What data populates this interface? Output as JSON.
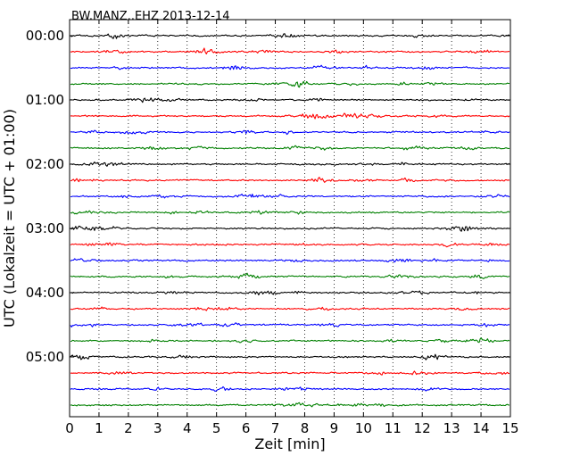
{
  "chart_data": {
    "type": "line",
    "title": "BW.MANZ..EHZ 2013-12-14",
    "xlabel": "Zeit  [min]",
    "ylabel": "UTC (Lokalzeit = UTC + 01:00)",
    "xlim": [
      0,
      15
    ],
    "x_ticks": [
      "0",
      "1",
      "2",
      "3",
      "4",
      "5",
      "6",
      "7",
      "8",
      "9",
      "10",
      "11",
      "12",
      "13",
      "14",
      "15"
    ],
    "y_ticks": [
      "00:00",
      "01:00",
      "02:00",
      "03:00",
      "04:00",
      "05:00"
    ],
    "trace_interval_minutes": 15,
    "vertical_grid": "dotted",
    "trace_colors": [
      "#000000",
      "#ff0000",
      "#0000ff",
      "#008000"
    ],
    "traces": [
      {
        "start": "00:00",
        "color": "#000000"
      },
      {
        "start": "00:15",
        "color": "#ff0000"
      },
      {
        "start": "00:30",
        "color": "#0000ff"
      },
      {
        "start": "00:45",
        "color": "#008000"
      },
      {
        "start": "01:00",
        "color": "#000000"
      },
      {
        "start": "01:15",
        "color": "#ff0000"
      },
      {
        "start": "01:30",
        "color": "#0000ff"
      },
      {
        "start": "01:45",
        "color": "#008000"
      },
      {
        "start": "02:00",
        "color": "#000000"
      },
      {
        "start": "02:15",
        "color": "#ff0000"
      },
      {
        "start": "02:30",
        "color": "#0000ff"
      },
      {
        "start": "02:45",
        "color": "#008000"
      },
      {
        "start": "03:00",
        "color": "#000000"
      },
      {
        "start": "03:15",
        "color": "#ff0000"
      },
      {
        "start": "03:30",
        "color": "#0000ff"
      },
      {
        "start": "03:45",
        "color": "#008000"
      },
      {
        "start": "04:00",
        "color": "#000000"
      },
      {
        "start": "04:15",
        "color": "#ff0000"
      },
      {
        "start": "04:30",
        "color": "#0000ff"
      },
      {
        "start": "04:45",
        "color": "#008000"
      },
      {
        "start": "05:00",
        "color": "#000000"
      },
      {
        "start": "05:15",
        "color": "#ff0000"
      },
      {
        "start": "05:30",
        "color": "#0000ff"
      },
      {
        "start": "05:45",
        "color": "#008000"
      }
    ]
  }
}
